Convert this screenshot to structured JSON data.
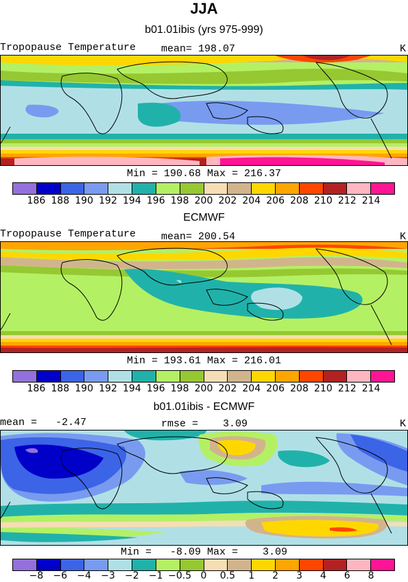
{
  "season": "JJA",
  "panels": [
    {
      "subtitle": "b01.01ibis (yrs 975-999)",
      "left_label": "Tropopause Temperature",
      "center_label": "mean= 198.07",
      "unit": "K",
      "minmax": "Min = 190.68 Max = 216.37"
    },
    {
      "subtitle": "ECMWF",
      "left_label": "Tropopause Temperature",
      "center_label": "mean= 200.54",
      "unit": "K",
      "minmax": "Min = 193.61 Max = 216.01"
    },
    {
      "subtitle": "b01.01ibis - ECMWF",
      "left_label": "mean =   -2.47",
      "center_label": "rmse =    3.09",
      "unit": "K",
      "minmax": "Min =   -8.09 Max =    3.09"
    }
  ],
  "colorbar": {
    "colors": [
      "#9370db",
      "#0000c8",
      "#3c64e6",
      "#789bf0",
      "#b0e0e6",
      "#20b2aa",
      "#b4f064",
      "#96c832",
      "#f5deb3",
      "#d2b48c",
      "#ffd700",
      "#ffa500",
      "#ff4500",
      "#b22222",
      "#ffb6c1",
      "#ff1493"
    ],
    "ticks_abs": [
      "186",
      "188",
      "190",
      "192",
      "194",
      "196",
      "198",
      "200",
      "202",
      "204",
      "206",
      "208",
      "210",
      "212",
      "214"
    ],
    "ticks_diff": [
      "-8",
      "-6",
      "-4",
      "-3",
      "-2",
      "-1",
      "-0.5",
      "0",
      "0.5",
      "1",
      "2",
      "3",
      "4",
      "6",
      "8"
    ]
  }
}
